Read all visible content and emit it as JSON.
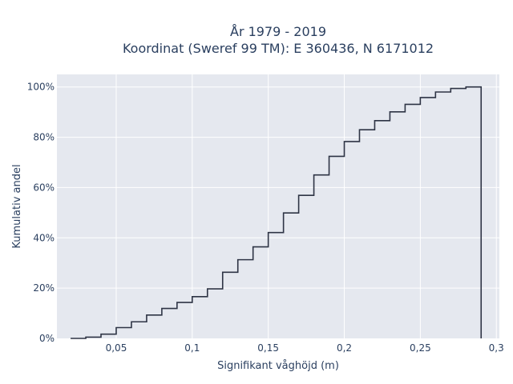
{
  "chart_data": {
    "type": "line",
    "subtype": "cumulative-step",
    "title_lines": [
      "År 1979 - 2019",
      "Koordinat (Sweref 99 TM): E 360436, N 6171012"
    ],
    "xlabel": "Signifikant våghöjd (m)",
    "ylabel": "Kumulativ andel",
    "xlim": [
      0.011,
      0.302
    ],
    "ylim": [
      0,
      1.05
    ],
    "xticks": [
      0.05,
      0.1,
      0.15,
      0.2,
      0.25,
      0.3
    ],
    "xtick_labels": [
      "0,05",
      "0,1",
      "0,15",
      "0,2",
      "0,25",
      "0,3"
    ],
    "yticks": [
      0,
      0.2,
      0.4,
      0.6,
      0.8,
      1.0
    ],
    "ytick_labels": [
      "0%",
      "20%",
      "40%",
      "60%",
      "80%",
      "100%"
    ],
    "grid": true,
    "background_color": "#e5e8ef",
    "line_color": "#2e3445",
    "bin_edges": [
      0.02,
      0.03,
      0.04,
      0.05,
      0.06,
      0.07,
      0.08,
      0.09,
      0.1,
      0.11,
      0.12,
      0.13,
      0.14,
      0.15,
      0.16,
      0.17,
      0.18,
      0.19,
      0.2,
      0.21,
      0.22,
      0.23,
      0.24,
      0.25,
      0.26,
      0.27,
      0.28,
      0.29
    ],
    "cumulative": [
      0.0,
      0.005,
      0.017,
      0.043,
      0.066,
      0.093,
      0.119,
      0.143,
      0.166,
      0.197,
      0.263,
      0.313,
      0.364,
      0.421,
      0.499,
      0.569,
      0.65,
      0.724,
      0.783,
      0.83,
      0.866,
      0.901,
      0.931,
      0.958,
      0.98,
      0.994,
      1.0
    ]
  }
}
